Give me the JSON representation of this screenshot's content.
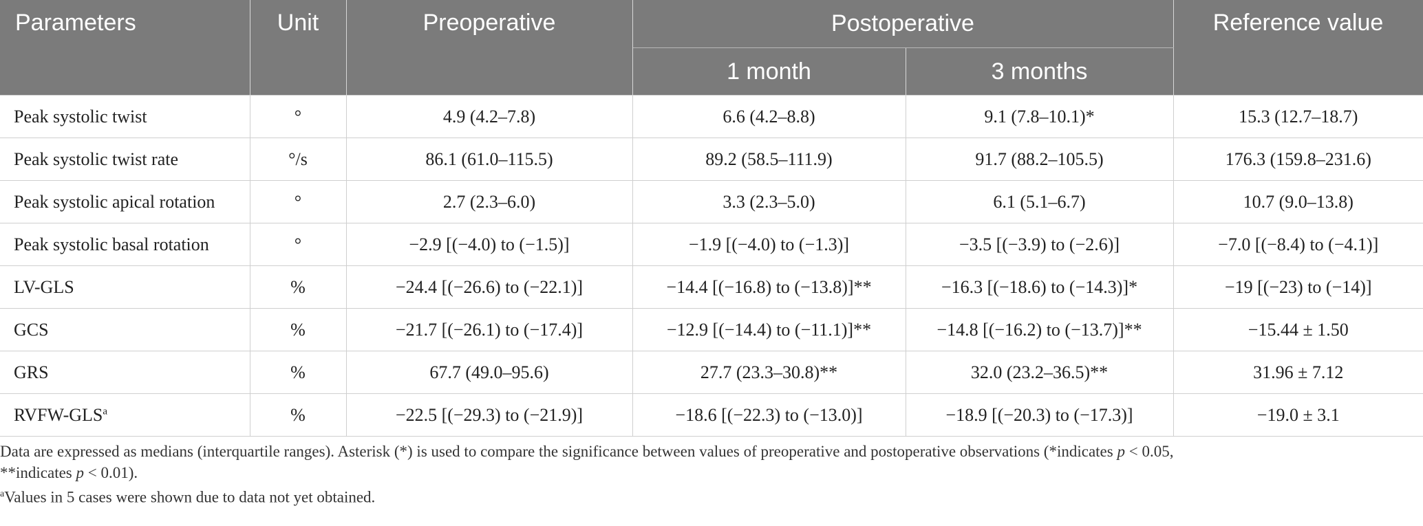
{
  "table": {
    "headers": {
      "parameters": "Parameters",
      "unit": "Unit",
      "preoperative": "Preoperative",
      "postoperative": "Postoperative",
      "one_month": "1 month",
      "three_months": "3 months",
      "reference": "Reference value"
    },
    "rows": [
      {
        "param": "Peak systolic twist",
        "sup": "",
        "unit": "°",
        "pre": "4.9 (4.2–7.8)",
        "m1": "6.6 (4.2–8.8)",
        "m3": "9.1 (7.8–10.1)*",
        "ref": "15.3 (12.7–18.7)"
      },
      {
        "param": "Peak systolic twist rate",
        "sup": "",
        "unit": "°/s",
        "pre": "86.1 (61.0–115.5)",
        "m1": "89.2 (58.5–111.9)",
        "m3": "91.7 (88.2–105.5)",
        "ref": "176.3 (159.8–231.6)"
      },
      {
        "param": "Peak systolic apical rotation",
        "sup": "",
        "unit": "°",
        "pre": "2.7 (2.3–6.0)",
        "m1": "3.3 (2.3–5.0)",
        "m3": "6.1 (5.1–6.7)",
        "ref": "10.7 (9.0–13.8)"
      },
      {
        "param": "Peak systolic basal rotation",
        "sup": "",
        "unit": "°",
        "pre": "−2.9 [(−4.0) to (−1.5)]",
        "m1": "−1.9 [(−4.0) to (−1.3)]",
        "m3": "−3.5 [(−3.9) to (−2.6)]",
        "ref": "−7.0 [(−8.4) to (−4.1)]"
      },
      {
        "param": "LV-GLS",
        "sup": "",
        "unit": "%",
        "pre": "−24.4 [(−26.6) to (−22.1)]",
        "m1": "−14.4 [(−16.8) to (−13.8)]**",
        "m3": "−16.3 [(−18.6) to (−14.3)]*",
        "ref": "−19 [(−23) to (−14)]"
      },
      {
        "param": "GCS",
        "sup": "",
        "unit": "%",
        "pre": "−21.7 [(−26.1) to (−17.4)]",
        "m1": "−12.9 [(−14.4) to (−11.1)]**",
        "m3": "−14.8 [(−16.2) to (−13.7)]**",
        "ref": "−15.44 ± 1.50"
      },
      {
        "param": "GRS",
        "sup": "",
        "unit": "%",
        "pre": "67.7 (49.0–95.6)",
        "m1": "27.7 (23.3–30.8)**",
        "m3": "32.0 (23.2–36.5)**",
        "ref": "31.96 ± 7.12"
      },
      {
        "param": "RVFW-GLS",
        "sup": "a",
        "unit": "%",
        "pre": "−22.5 [(−29.3) to (−21.9)]",
        "m1": "−18.6 [(−22.3) to (−13.0)]",
        "m3": "−18.9 [(−20.3) to (−17.3)]",
        "ref": "−19.0 ± 3.1"
      }
    ]
  },
  "footnotes": {
    "line1_a": "Data are expressed as medians (interquartile ranges). Asterisk (*) is used to compare the significance between values of preoperative and postoperative observations (*indicates ",
    "p1": "p",
    "line1_b": " < 0.05, ",
    "line2_a": "**indicates ",
    "p2": "p",
    "line2_b": " < 0.01).",
    "note_mark": "a",
    "note_text": "Values in 5 cases were shown due to data not yet obtained."
  }
}
